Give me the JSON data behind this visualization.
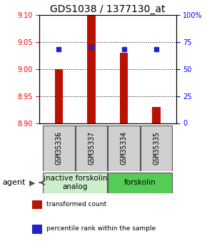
{
  "title": "GDS1038 / 1377130_at",
  "samples": [
    "GSM35336",
    "GSM35337",
    "GSM35334",
    "GSM35335"
  ],
  "bar_values": [
    9.0,
    9.1,
    9.03,
    8.93
  ],
  "percentile_values": [
    68,
    70,
    68,
    68
  ],
  "ylim_left": [
    8.9,
    9.1
  ],
  "ylim_right": [
    0,
    100
  ],
  "yticks_left": [
    8.9,
    8.95,
    9.0,
    9.05,
    9.1
  ],
  "yticks_right": [
    0,
    25,
    50,
    75,
    100
  ],
  "bar_color": "#bb1100",
  "dot_color": "#2222cc",
  "bar_bottom": 8.9,
  "gridlines": [
    8.95,
    9.0,
    9.05
  ],
  "groups": [
    {
      "label": "inactive forskolin\nanalog",
      "samples": [
        0,
        1
      ],
      "color": "#cceecc",
      "border": "#999999"
    },
    {
      "label": "forskolin",
      "samples": [
        2,
        3
      ],
      "color": "#55cc55",
      "border": "#999999"
    }
  ],
  "legend_items": [
    {
      "color": "#bb1100",
      "label": "transformed count"
    },
    {
      "color": "#2222cc",
      "label": "percentile rank within the sample"
    }
  ],
  "agent_label": "agent",
  "title_fontsize": 10,
  "tick_fontsize": 7,
  "sample_label_fontsize": 7,
  "group_label_fontsize": 7.5
}
